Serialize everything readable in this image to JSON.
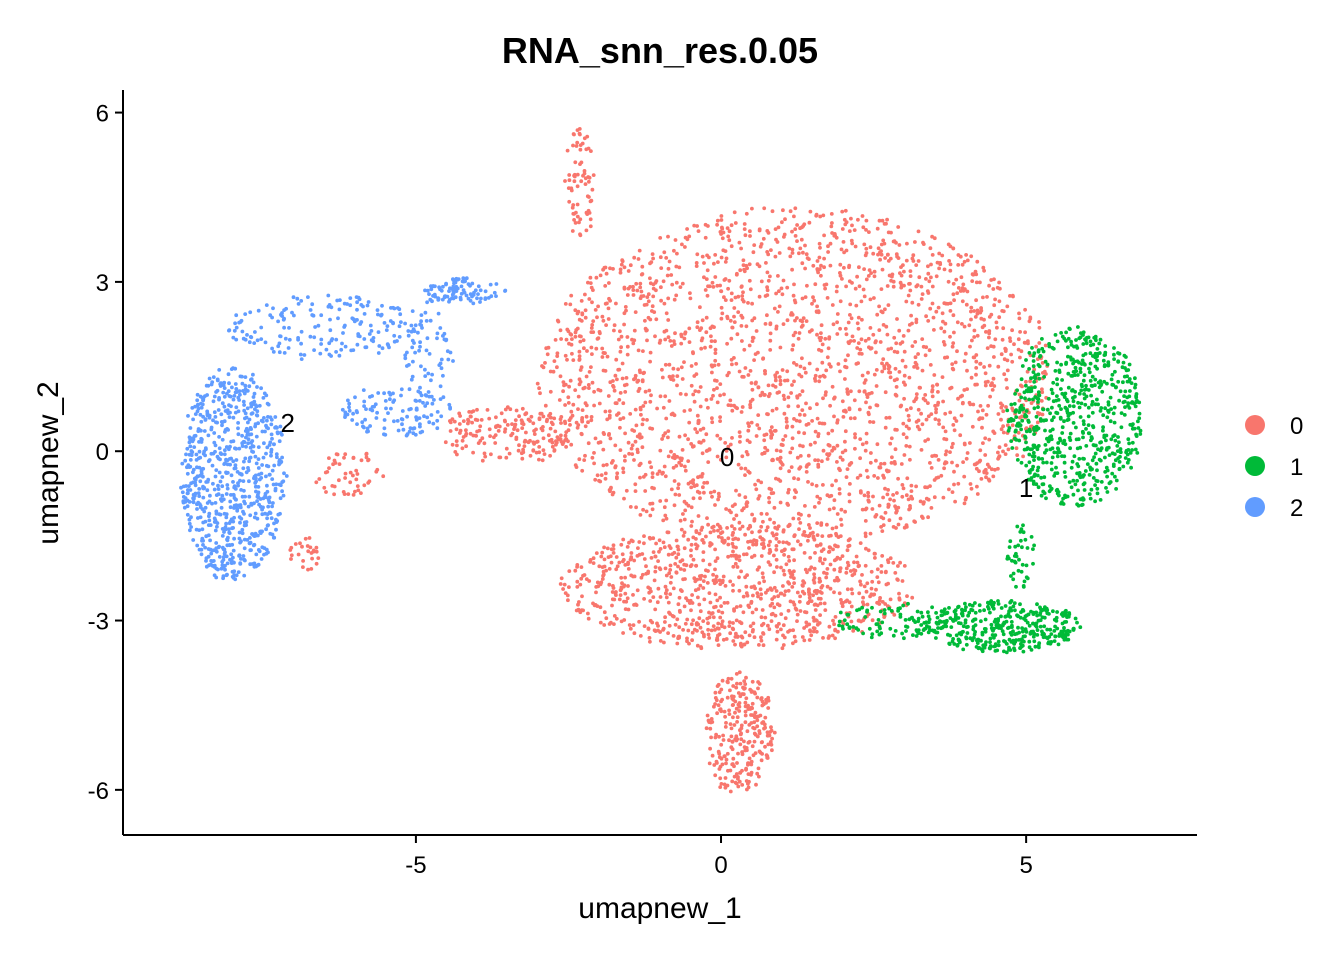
{
  "chart_data": {
    "type": "scatter",
    "title": "RNA_snn_res.0.05",
    "xlabel": "umapnew_1",
    "ylabel": "umapnew_2",
    "xlim": [
      -9.8,
      7.8
    ],
    "ylim": [
      -6.8,
      6.4
    ],
    "x_ticks": [
      -5,
      0,
      5
    ],
    "x_tick_labels": [
      "-5",
      "0",
      "5"
    ],
    "y_ticks": [
      -6,
      -3,
      0,
      3,
      6
    ],
    "y_tick_labels": [
      "-6",
      "-3",
      "0",
      "3",
      "6"
    ],
    "grid": false,
    "legend_position": "right",
    "series": [
      {
        "name": "0",
        "color": "#F8766D",
        "label_point": [
          0.1,
          -0.1
        ],
        "regions": [
          {
            "cx": 1.2,
            "cy": 1.3,
            "rx": 4.2,
            "ry": 3.0,
            "n": 2200
          },
          {
            "cx": 0.3,
            "cy": -2.4,
            "rx": 2.9,
            "ry": 1.1,
            "n": 900
          },
          {
            "cx": 0.3,
            "cy": -5.0,
            "rx": 0.55,
            "ry": 1.1,
            "n": 260
          },
          {
            "cx": -2.3,
            "cy": 4.8,
            "rx": 0.25,
            "ry": 1.0,
            "n": 70
          },
          {
            "cx": -3.5,
            "cy": 0.3,
            "rx": 1.1,
            "ry": 0.5,
            "n": 180
          },
          {
            "cx": -6.1,
            "cy": -0.4,
            "rx": 0.6,
            "ry": 0.4,
            "n": 50
          },
          {
            "cx": -6.8,
            "cy": -1.8,
            "rx": 0.3,
            "ry": 0.3,
            "n": 25
          }
        ]
      },
      {
        "name": "1",
        "color": "#00BA38",
        "label_point": [
          5.0,
          -0.65
        ],
        "regions": [
          {
            "cx": 5.8,
            "cy": 0.6,
            "rx": 1.1,
            "ry": 1.6,
            "n": 650
          },
          {
            "cx": 4.6,
            "cy": -3.1,
            "rx": 1.3,
            "ry": 0.45,
            "n": 380
          },
          {
            "cx": 2.8,
            "cy": -3.0,
            "rx": 0.9,
            "ry": 0.3,
            "n": 90
          },
          {
            "cx": 4.9,
            "cy": -1.9,
            "rx": 0.25,
            "ry": 0.6,
            "n": 40
          }
        ]
      },
      {
        "name": "2",
        "color": "#619CFF",
        "label_point": [
          -7.1,
          0.5
        ],
        "regions": [
          {
            "cx": -8.0,
            "cy": -0.4,
            "rx": 0.85,
            "ry": 1.9,
            "n": 750
          },
          {
            "cx": -6.5,
            "cy": 2.2,
            "rx": 1.6,
            "ry": 0.55,
            "n": 180
          },
          {
            "cx": -4.2,
            "cy": 2.85,
            "rx": 0.65,
            "ry": 0.2,
            "n": 90
          },
          {
            "cx": -5.3,
            "cy": 0.7,
            "rx": 0.9,
            "ry": 0.45,
            "n": 110
          },
          {
            "cx": -4.8,
            "cy": 1.8,
            "rx": 0.4,
            "ry": 0.9,
            "n": 60
          }
        ]
      }
    ]
  }
}
